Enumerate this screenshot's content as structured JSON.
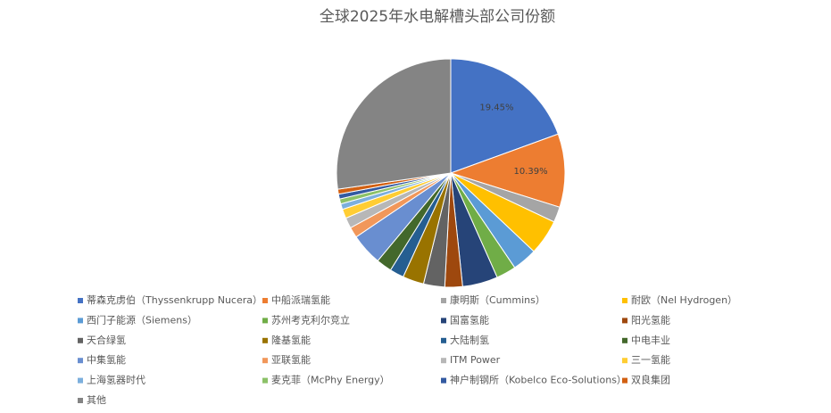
{
  "chart_data": {
    "type": "pie",
    "title": "全球2025年水电解槽头部公司份额",
    "categories": [
      "蒂森克虏伯（Thyssenkrupp Nucera）",
      "中船派瑞氢能",
      "康明斯（Cummins）",
      "耐欧（Nel Hydrogen）",
      "西门子能源（Siemens）",
      "苏州考克利尔竞立",
      "国富氢能",
      "阳光氢能",
      "天合绿氢",
      "隆基氢能",
      "大陆制氢",
      "中电丰业",
      "中集氢能",
      "亚联氢能",
      "ITM Power",
      "三一氢能",
      "上海氢器时代",
      "麦克菲（McPhy Energy）",
      "神户制钢所（Kobelco Eco-Solutions）",
      "双良集团",
      "其他"
    ],
    "values": [
      19.45,
      10.39,
      2.2,
      5,
      3.5,
      2.8,
      5,
      2.5,
      3,
      3,
      2,
      2.2,
      4.5,
      1.5,
      1.5,
      1.3,
      0.8,
      0.7,
      0.7,
      0.7,
      27.26
    ],
    "value_labels": [
      "19.45%",
      "10.39%",
      null,
      null,
      null,
      null,
      null,
      null,
      null,
      null,
      null,
      null,
      null,
      null,
      null,
      null,
      null,
      null,
      null,
      null,
      null
    ],
    "colors": [
      "#4472C4",
      "#ED7D31",
      "#A5A5A5",
      "#FFC000",
      "#5B9BD5",
      "#70AD47",
      "#264478",
      "#9E480E",
      "#636363",
      "#997300",
      "#255E91",
      "#43682B",
      "#698ED0",
      "#F1975A",
      "#B7B7B7",
      "#FFCD33",
      "#7CAFDD",
      "#8CC168",
      "#335AA1",
      "#D26012",
      "#848484"
    ],
    "legend": "bottom"
  }
}
